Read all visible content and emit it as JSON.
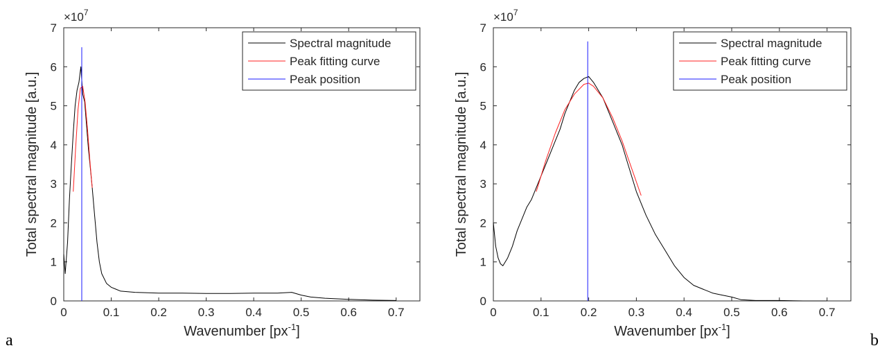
{
  "panel_letters": [
    "a",
    "b"
  ],
  "colors": {
    "spectrum": "#000000",
    "fit": "#ff2020",
    "peak": "#1a1aff",
    "axes": "#262626"
  },
  "chart_data": [
    {
      "type": "line",
      "xlabel_main": "Wavenumber [px",
      "xlabel_sup": "-1",
      "xlabel_tail": "]",
      "ylabel": "Total spectral magnitude [a.u.]",
      "exponent_prefix": "×10",
      "exponent_power": "7",
      "xlim": [
        0,
        0.75
      ],
      "ylim": [
        0,
        7
      ],
      "xticks": [
        0,
        0.1,
        0.2,
        0.3,
        0.4,
        0.5,
        0.6,
        0.7
      ],
      "xtick_labels": [
        "0",
        "0.1",
        "0.2",
        "0.3",
        "0.4",
        "0.5",
        "0.6",
        "0.7"
      ],
      "yticks": [
        0,
        1,
        2,
        3,
        4,
        5,
        6,
        7
      ],
      "ytick_labels": [
        "0",
        "1",
        "2",
        "3",
        "4",
        "5",
        "6",
        "7"
      ],
      "legend_position": "top-right",
      "grid": false,
      "series": [
        {
          "name": "Spectral magnitude",
          "color": "#000000",
          "x": [
            0,
            0.003,
            0.008,
            0.012,
            0.016,
            0.02,
            0.024,
            0.028,
            0.032,
            0.036,
            0.04,
            0.044,
            0.048,
            0.052,
            0.056,
            0.06,
            0.065,
            0.07,
            0.075,
            0.08,
            0.09,
            0.1,
            0.11,
            0.12,
            0.15,
            0.2,
            0.25,
            0.3,
            0.35,
            0.4,
            0.45,
            0.48,
            0.5,
            0.52,
            0.55,
            0.6,
            0.65,
            0.7
          ],
          "y": [
            1.2,
            0.7,
            1.5,
            2.6,
            3.5,
            4.3,
            5.0,
            5.4,
            5.6,
            6.0,
            5.3,
            5.1,
            4.5,
            3.9,
            3.4,
            2.9,
            2.2,
            1.5,
            1.0,
            0.7,
            0.45,
            0.35,
            0.3,
            0.25,
            0.22,
            0.2,
            0.2,
            0.19,
            0.19,
            0.2,
            0.2,
            0.22,
            0.15,
            0.1,
            0.07,
            0.04,
            0.02,
            0.01
          ]
        },
        {
          "name": "Peak fitting curve",
          "color": "#ff2020",
          "x": [
            0.02,
            0.025,
            0.03,
            0.035,
            0.04,
            0.045,
            0.05,
            0.055,
            0.06
          ],
          "y": [
            2.8,
            3.9,
            4.9,
            5.45,
            5.5,
            5.1,
            4.4,
            3.6,
            2.9
          ]
        },
        {
          "name": "Peak position",
          "color": "#1a1aff",
          "x": [
            0.038,
            0.038
          ],
          "y": [
            0,
            6.5
          ]
        }
      ]
    },
    {
      "type": "line",
      "xlabel_main": "Wavenumber [px",
      "xlabel_sup": "-1",
      "xlabel_tail": "]",
      "ylabel": "Total spectral magnitude [a.u.]",
      "exponent_prefix": "×10",
      "exponent_power": "7",
      "xlim": [
        0,
        0.75
      ],
      "ylim": [
        0,
        7
      ],
      "xticks": [
        0,
        0.1,
        0.2,
        0.3,
        0.4,
        0.5,
        0.6,
        0.7
      ],
      "xtick_labels": [
        "0",
        "0.1",
        "0.2",
        "0.3",
        "0.4",
        "0.5",
        "0.6",
        "0.7"
      ],
      "yticks": [
        0,
        1,
        2,
        3,
        4,
        5,
        6,
        7
      ],
      "ytick_labels": [
        "0",
        "1",
        "2",
        "3",
        "4",
        "5",
        "6",
        "7"
      ],
      "legend_position": "top-right",
      "grid": false,
      "series": [
        {
          "name": "Spectral magnitude",
          "color": "#000000",
          "x": [
            0,
            0.005,
            0.01,
            0.015,
            0.02,
            0.03,
            0.04,
            0.05,
            0.06,
            0.07,
            0.08,
            0.09,
            0.1,
            0.11,
            0.12,
            0.13,
            0.14,
            0.15,
            0.16,
            0.17,
            0.18,
            0.19,
            0.2,
            0.21,
            0.22,
            0.23,
            0.24,
            0.25,
            0.26,
            0.27,
            0.28,
            0.29,
            0.3,
            0.32,
            0.34,
            0.36,
            0.38,
            0.4,
            0.42,
            0.44,
            0.46,
            0.48,
            0.5,
            0.52,
            0.55,
            0.6,
            0.65,
            0.7
          ],
          "y": [
            2.0,
            1.4,
            1.1,
            0.95,
            0.9,
            1.1,
            1.4,
            1.8,
            2.1,
            2.4,
            2.6,
            2.9,
            3.2,
            3.5,
            3.8,
            4.1,
            4.4,
            4.8,
            5.1,
            5.4,
            5.6,
            5.7,
            5.75,
            5.6,
            5.4,
            5.2,
            4.9,
            4.6,
            4.3,
            4.0,
            3.6,
            3.2,
            2.8,
            2.2,
            1.7,
            1.3,
            0.9,
            0.6,
            0.4,
            0.3,
            0.2,
            0.15,
            0.1,
            0.03,
            0.01,
            0.01,
            0.0,
            0.0
          ]
        },
        {
          "name": "Peak fitting curve",
          "color": "#ff2020",
          "x": [
            0.09,
            0.11,
            0.13,
            0.15,
            0.17,
            0.19,
            0.2,
            0.21,
            0.23,
            0.25,
            0.27,
            0.29,
            0.31
          ],
          "y": [
            2.8,
            3.6,
            4.3,
            4.9,
            5.3,
            5.55,
            5.58,
            5.5,
            5.2,
            4.7,
            4.1,
            3.4,
            2.7
          ]
        },
        {
          "name": "Peak position",
          "color": "#1a1aff",
          "x": [
            0.198,
            0.198
          ],
          "y": [
            0,
            6.65
          ]
        }
      ]
    }
  ]
}
